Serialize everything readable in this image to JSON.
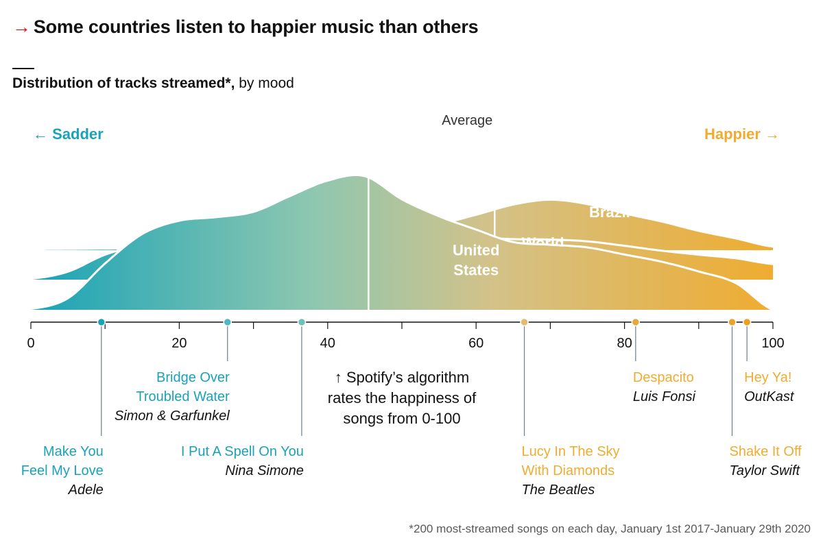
{
  "title": {
    "arrow": "→",
    "text": "Some countries listen to happier music than others"
  },
  "subtitle": {
    "bold": "Distribution of tracks streamed*,",
    "regular": " by mood"
  },
  "footnote": "*200 most-streamed songs on each day, January 1st 2017-January 29th 2020",
  "colors": {
    "sad": "#1aa3b6",
    "mid": "#8ec7b0",
    "happy": "#efac30",
    "red_arrow": "#e3120b",
    "text": "#121212"
  },
  "chart_data": {
    "type": "area",
    "xlim": [
      0,
      100
    ],
    "xticks": [
      0,
      20,
      40,
      60,
      80,
      100
    ],
    "direction_labels": {
      "left": "← Sadder",
      "right": "Happier →"
    },
    "average_label": "Average",
    "series": [
      {
        "name": "Brazil",
        "label_lines": [
          "Brazil"
        ],
        "label_x": 78,
        "label_h": 0.1,
        "average": 62.5,
        "x": [
          2,
          5,
          10,
          15,
          20,
          25,
          30,
          35,
          40,
          45,
          50,
          55,
          60,
          65,
          70,
          75,
          80,
          85,
          90,
          95,
          100
        ],
        "density": [
          0.002,
          0.003,
          0.006,
          0.012,
          0.022,
          0.038,
          0.062,
          0.098,
          0.14,
          0.17,
          0.205,
          0.28,
          0.385,
          0.5,
          0.555,
          0.505,
          0.4,
          0.31,
          0.205,
          0.12,
          0.028
        ]
      },
      {
        "name": "World",
        "label_lines": [
          "World"
        ],
        "label_x": 69,
        "label_h": 0.085,
        "average": 50,
        "x": [
          0,
          5,
          10,
          15,
          20,
          25,
          30,
          35,
          40,
          45,
          50,
          55,
          60,
          65,
          70,
          75,
          80,
          85,
          90,
          95,
          100
        ],
        "density": [
          0.01,
          0.09,
          0.28,
          0.39,
          0.43,
          0.48,
          0.53,
          0.6,
          0.67,
          0.67,
          0.58,
          0.515,
          0.475,
          0.455,
          0.45,
          0.43,
          0.38,
          0.325,
          0.28,
          0.24,
          0.175
        ]
      },
      {
        "name": "United States",
        "label_lines": [
          "United",
          "States"
        ],
        "label_x": 60,
        "label_h": 0.15,
        "average": 45.5,
        "x": [
          0,
          5,
          10,
          15,
          20,
          25,
          30,
          35,
          40,
          45,
          50,
          55,
          60,
          65,
          70,
          75,
          80,
          85,
          90,
          95,
          100
        ],
        "density": [
          0.01,
          0.13,
          0.52,
          0.85,
          1.0,
          1.04,
          1.1,
          1.28,
          1.45,
          1.5,
          1.24,
          1.05,
          0.9,
          0.76,
          0.73,
          0.7,
          0.62,
          0.54,
          0.43,
          0.3,
          0.0
        ]
      }
    ],
    "songs": [
      {
        "title_lines": [
          "Make You",
          "Feel My Love"
        ],
        "artist": "Adele",
        "value": 9.5,
        "color": "#1aa3b6",
        "label_side": "left",
        "row": "low"
      },
      {
        "title_lines": [
          "Bridge Over",
          "Troubled Water"
        ],
        "artist": "Simon & Garfunkel",
        "value": 26.5,
        "color": "#4fb8c0",
        "label_side": "left",
        "row": "high"
      },
      {
        "title_lines": [
          "I Put A Spell On You"
        ],
        "artist": "Nina Simone",
        "value": 36.5,
        "color": "#6cc2bb",
        "label_side": "left",
        "row": "low"
      },
      {
        "title_lines": [
          "Lucy In The Sky",
          "With Diamonds"
        ],
        "artist": "The Beatles",
        "value": 66.5,
        "color": "#e2bb73",
        "label_side": "right",
        "row": "low"
      },
      {
        "title_lines": [
          "Despacito"
        ],
        "artist": "Luis Fonsi",
        "value": 81.5,
        "color": "#e3a83e",
        "label_side": "right",
        "row": "high"
      },
      {
        "title_lines": [
          "Shake It Off"
        ],
        "artist": "Taylor Swift",
        "value": 94.5,
        "color": "#e9a22d",
        "label_side": "right",
        "row": "low"
      },
      {
        "title_lines": [
          "Hey Ya!"
        ],
        "artist": "OutKast",
        "value": 96.5,
        "color": "#ec9f20",
        "label_side": "right",
        "row": "high"
      }
    ],
    "annotation": {
      "arrow": "🡡",
      "lines": [
        "Spotify’s algorithm",
        "rates the happiness of",
        "songs from 0-100"
      ]
    }
  }
}
